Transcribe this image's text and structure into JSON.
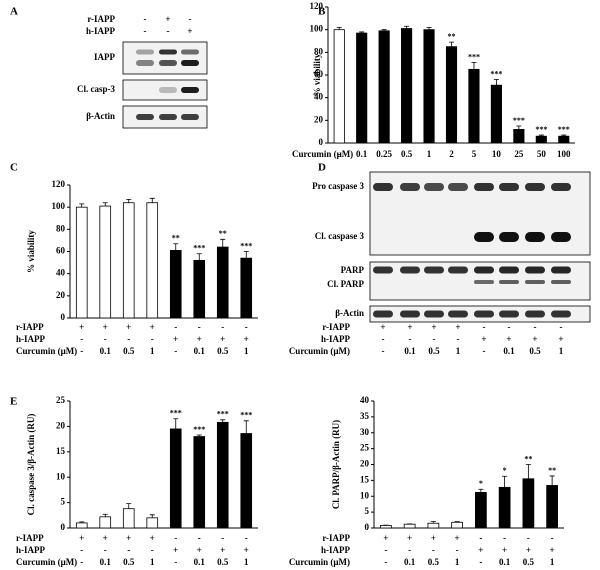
{
  "chart_data": [
    {
      "type": "bar",
      "panel": "B",
      "ylabel": "% viability",
      "xlabel": "Curcumin (μM)",
      "categories": [
        "-",
        "0.1",
        "0.25",
        "0.5",
        "1",
        "2",
        "5",
        "10",
        "25",
        "50",
        "100"
      ],
      "values": [
        100,
        97,
        99,
        101,
        100,
        85,
        65,
        51,
        12,
        6,
        6
      ],
      "errors": [
        2,
        1,
        1,
        2,
        2,
        4,
        6,
        5,
        3,
        1,
        1
      ],
      "annotations": [
        null,
        null,
        null,
        null,
        null,
        "**",
        "***",
        "***",
        "***",
        "***",
        "***"
      ],
      "bar_colors": [
        "#ffffff",
        "#000000",
        "#000000",
        "#000000",
        "#000000",
        "#000000",
        "#000000",
        "#000000",
        "#000000",
        "#000000",
        "#000000"
      ],
      "ylim": [
        0,
        120
      ],
      "yticks": [
        0,
        20,
        40,
        60,
        80,
        100,
        120
      ]
    },
    {
      "type": "bar",
      "panel": "C",
      "ylabel": "% viability",
      "values": [
        100,
        101,
        104,
        104,
        61,
        52,
        64,
        54
      ],
      "errors": [
        3,
        3,
        3,
        4,
        6,
        6,
        7,
        6
      ],
      "annotations": [
        null,
        null,
        null,
        null,
        "**",
        "***",
        "**",
        "***"
      ],
      "bar_colors": [
        "#ffffff",
        "#ffffff",
        "#ffffff",
        "#ffffff",
        "#000000",
        "#000000",
        "#000000",
        "#000000"
      ],
      "treatments": [
        {
          "name": "r-IAPP",
          "values": [
            "+",
            "+",
            "+",
            "+",
            "-",
            "-",
            "-",
            "-"
          ]
        },
        {
          "name": "h-IAPP",
          "values": [
            "-",
            "-",
            "-",
            "-",
            "+",
            "+",
            "+",
            "+"
          ]
        },
        {
          "name": "Curcumin (μM)",
          "values": [
            "-",
            "0.1",
            "0.5",
            "1",
            "-",
            "0.1",
            "0.5",
            "1"
          ]
        }
      ],
      "ylim": [
        0,
        120
      ],
      "yticks": [
        0,
        20,
        40,
        60,
        80,
        100,
        120
      ]
    },
    {
      "type": "bar",
      "panel": "E",
      "ylabel": "Cl. caspase 3/β-Actin (RU)",
      "values": [
        1,
        2.2,
        3.8,
        2,
        19.5,
        18,
        20.8,
        18.6
      ],
      "errors": [
        0.2,
        0.5,
        1,
        0.6,
        2,
        0.3,
        0.5,
        2.5
      ],
      "annotations": [
        null,
        null,
        null,
        null,
        "***",
        "***",
        "***",
        "***"
      ],
      "bar_colors": [
        "#ffffff",
        "#ffffff",
        "#ffffff",
        "#ffffff",
        "#000000",
        "#000000",
        "#000000",
        "#000000"
      ],
      "treatments": [
        {
          "name": "r-IAPP",
          "values": [
            "+",
            "+",
            "+",
            "+",
            "-",
            "-",
            "-",
            "-"
          ]
        },
        {
          "name": "h-IAPP",
          "values": [
            "-",
            "-",
            "-",
            "-",
            "+",
            "+",
            "+",
            "+"
          ]
        },
        {
          "name": "Curcumin (μM)",
          "values": [
            "-",
            "0.1",
            "0.5",
            "1",
            "-",
            "0.1",
            "0.5",
            "1"
          ]
        }
      ],
      "ylim": [
        0,
        25
      ],
      "yticks": [
        0,
        5,
        10,
        15,
        20,
        25
      ]
    },
    {
      "type": "bar",
      "ylabel": "Cl. PARP/β-Actin (RU)",
      "values": [
        0.8,
        1.2,
        1.5,
        1.8,
        11.2,
        12.8,
        15.5,
        13.4
      ],
      "errors": [
        0.1,
        0.1,
        0.5,
        0.2,
        1,
        3.5,
        4.5,
        3
      ],
      "annotations": [
        null,
        null,
        null,
        null,
        "*",
        "*",
        "**",
        "**"
      ],
      "bar_colors": [
        "#ffffff",
        "#ffffff",
        "#ffffff",
        "#ffffff",
        "#000000",
        "#000000",
        "#000000",
        "#000000"
      ],
      "treatments": [
        {
          "name": "r-IAPP",
          "values": [
            "+",
            "+",
            "+",
            "+",
            "-",
            "-",
            "-",
            "-"
          ]
        },
        {
          "name": "h-IAPP",
          "values": [
            "-",
            "-",
            "-",
            "-",
            "+",
            "+",
            "+",
            "+"
          ]
        },
        {
          "name": "Curcumin (μM)",
          "values": [
            "-",
            "0.1",
            "0.5",
            "1",
            "-",
            "0.1",
            "0.5",
            "1"
          ]
        }
      ],
      "ylim": [
        0,
        40
      ],
      "yticks": [
        0,
        5,
        10,
        15,
        20,
        25,
        30,
        35,
        40
      ]
    }
  ],
  "blots": [
    {
      "panel": "A",
      "treatments": [
        {
          "name": "r-IAPP",
          "values": [
            "-",
            "+",
            "-"
          ]
        },
        {
          "name": "h-IAPP",
          "values": [
            "-",
            "-",
            "+"
          ]
        }
      ],
      "bands": [
        "IAPP",
        "Cl. casp-3",
        "β-Actin"
      ]
    },
    {
      "panel": "D",
      "treatments": [
        {
          "name": "r-IAPP",
          "values": [
            "+",
            "+",
            "+",
            "+",
            "-",
            "-",
            "-",
            "-"
          ]
        },
        {
          "name": "h-IAPP",
          "values": [
            "-",
            "-",
            "-",
            "-",
            "+",
            "+",
            "+",
            "+"
          ]
        },
        {
          "name": "Curcumin (μM)",
          "values": [
            "-",
            "0.1",
            "0.5",
            "1",
            "-",
            "0.1",
            "0.5",
            "1"
          ]
        }
      ],
      "bands": [
        "Pro caspase 3",
        "Cl. caspase 3",
        "PARP",
        "Cl. PARP",
        "β-Actin"
      ]
    }
  ]
}
